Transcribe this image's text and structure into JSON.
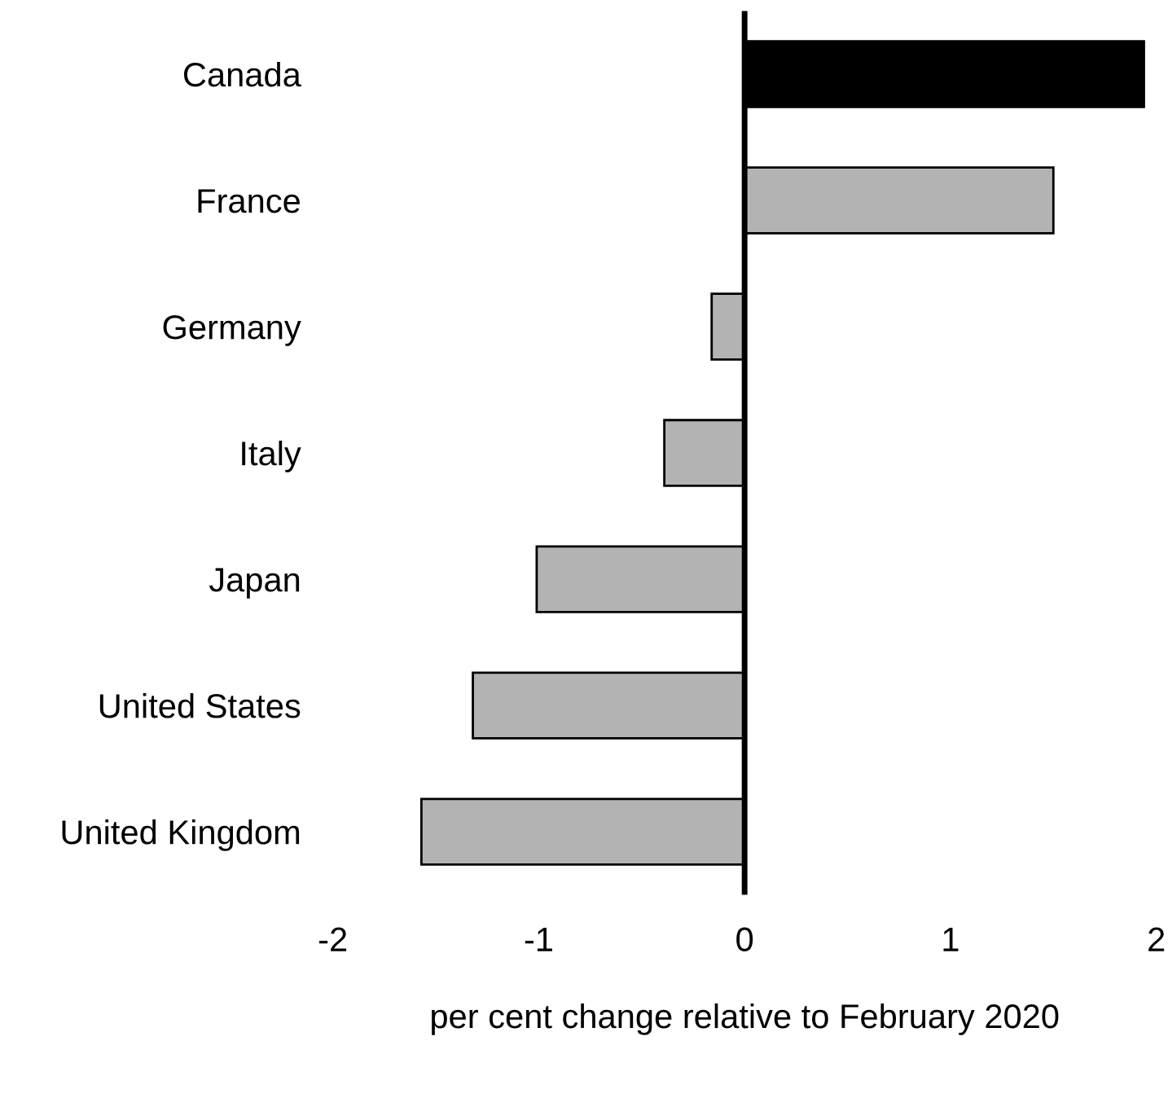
{
  "chart_data": {
    "type": "bar",
    "orientation": "horizontal",
    "xlabel": "per cent change relative to February 2020",
    "categories": [
      "Canada",
      "France",
      "Germany",
      "Italy",
      "Japan",
      "United States",
      "United Kingdom"
    ],
    "values": [
      1.94,
      1.5,
      -0.16,
      -0.39,
      -1.01,
      -1.32,
      -1.57
    ],
    "colors": [
      "#000000",
      "#b3b3b3",
      "#b3b3b3",
      "#b3b3b3",
      "#b3b3b3",
      "#b3b3b3",
      "#b3b3b3"
    ],
    "xlim": [
      -2,
      2
    ],
    "xticks": [
      -2,
      -1,
      0,
      1,
      2
    ],
    "ref_lines": [
      {
        "axis": "x",
        "value": 0,
        "color": "#000000"
      }
    ],
    "grid": false,
    "legend": false
  }
}
